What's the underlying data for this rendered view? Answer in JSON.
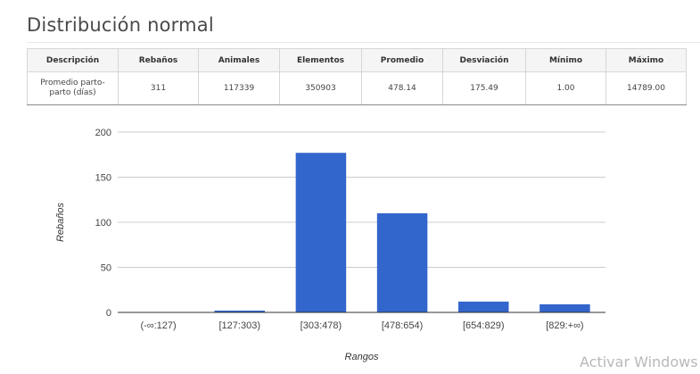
{
  "page": {
    "title": "Distribución normal"
  },
  "stats_table": {
    "headers": [
      "Descripción",
      "Rebaños",
      "Animales",
      "Elementos",
      "Promedio",
      "Desviación",
      "Mínimo",
      "Máximo"
    ],
    "row": [
      "Promedio parto-parto (días)",
      "311",
      "117339",
      "350903",
      "478.14",
      "175.49",
      "1.00",
      "14789.00"
    ]
  },
  "chart_data": {
    "type": "bar",
    "categories": [
      "(-∞:127)",
      "[127:303)",
      "[303:478)",
      "[478:654)",
      "[654:829)",
      "[829:+∞)"
    ],
    "values": [
      0,
      2,
      177,
      110,
      12,
      9
    ],
    "xlabel": "Rangos",
    "ylabel": "Rebaños",
    "ylim": [
      0,
      200
    ],
    "yticks": [
      0,
      50,
      100,
      150,
      200
    ],
    "grid": true,
    "bar_color": "#3366cc"
  },
  "watermark": "Activar Windows"
}
